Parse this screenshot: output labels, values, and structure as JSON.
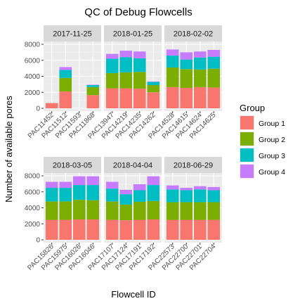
{
  "chart_data": {
    "type": "bar",
    "stacked": true,
    "title": "QC of Debug Flowcells",
    "xlabel": "Flowcell ID",
    "ylabel": "Number of available pores",
    "ylim": [
      0,
      8000
    ],
    "yticks": [
      0,
      2000,
      4000,
      6000,
      8000
    ],
    "grid": true,
    "legend": {
      "title": "Group",
      "placement": "right",
      "entries": [
        {
          "label": "Group 1",
          "color": "#F8766D"
        },
        {
          "label": "Group 2",
          "color": "#7CAE00"
        },
        {
          "label": "Group 3",
          "color": "#00BFC4"
        },
        {
          "label": "Group 4",
          "color": "#C77CFF"
        }
      ]
    },
    "facets": [
      {
        "label": "2017-11-25",
        "categories": [
          "PAC11452",
          "PAC11512",
          "PAC11593",
          "PAC11868"
        ],
        "series": [
          {
            "name": "Group 1",
            "values": [
              650,
              2100,
              0,
              1650
            ]
          },
          {
            "name": "Group 2",
            "values": [
              0,
              1700,
              0,
              1000
            ]
          },
          {
            "name": "Group 3",
            "values": [
              0,
              1000,
              0,
              250
            ]
          },
          {
            "name": "Group 4",
            "values": [
              0,
              350,
              0,
              50
            ]
          }
        ]
      },
      {
        "label": "2018-01-25",
        "categories": [
          "PAC13947",
          "PAC14219",
          "PAC14235",
          "PAC14262"
        ],
        "series": [
          {
            "name": "Group 1",
            "values": [
              2500,
              2500,
              2450,
              2000
            ]
          },
          {
            "name": "Group 2",
            "values": [
              1900,
              2000,
              2100,
              900
            ]
          },
          {
            "name": "Group 3",
            "values": [
              1800,
              1900,
              1700,
              400
            ]
          },
          {
            "name": "Group 4",
            "values": [
              600,
              800,
              850,
              50
            ]
          }
        ]
      },
      {
        "label": "2018-02-02",
        "categories": [
          "PAC14528",
          "PAC14615",
          "PAC14624",
          "PAC14625"
        ],
        "series": [
          {
            "name": "Group 1",
            "values": [
              2650,
              2550,
              2650,
              2600
            ]
          },
          {
            "name": "Group 2",
            "values": [
              2450,
              2350,
              2200,
              2350
            ]
          },
          {
            "name": "Group 3",
            "values": [
              1500,
              1200,
              1500,
              1500
            ]
          },
          {
            "name": "Group 4",
            "values": [
              750,
              900,
              750,
              850
            ]
          }
        ]
      },
      {
        "label": "2018-03-05",
        "categories": [
          "PAC15826",
          "PAC15975",
          "PAC16026",
          "PAC16046"
        ],
        "series": [
          {
            "name": "Group 1",
            "values": [
              2500,
              2500,
              2550,
              2550
            ]
          },
          {
            "name": "Group 2",
            "values": [
              2300,
              2300,
              2450,
              2400
            ]
          },
          {
            "name": "Group 3",
            "values": [
              1700,
              1700,
              1850,
              1900
            ]
          },
          {
            "name": "Group 4",
            "values": [
              750,
              750,
              1100,
              1100
            ]
          }
        ]
      },
      {
        "label": "2018-04-04",
        "categories": [
          "PAC17107",
          "PAC17124",
          "PAC17191",
          "PAC17192"
        ],
        "series": [
          {
            "name": "Group 1",
            "values": [
              2500,
              2450,
              2500,
              2550
            ]
          },
          {
            "name": "Group 2",
            "values": [
              2300,
              1950,
              2250,
              2300
            ]
          },
          {
            "name": "Group 3",
            "values": [
              1600,
              1300,
              1450,
              2000
            ]
          },
          {
            "name": "Group 4",
            "values": [
              850,
              550,
              750,
              1100
            ]
          }
        ]
      },
      {
        "label": "2018-06-29",
        "categories": [
          "PAC22573",
          "PAC22700",
          "PAC22701",
          "PAC22704"
        ],
        "series": [
          {
            "name": "Group 1",
            "values": [
              2500,
              2500,
              2500,
              2500
            ]
          },
          {
            "name": "Group 2",
            "values": [
              2200,
              2200,
              2200,
              2200
            ]
          },
          {
            "name": "Group 3",
            "values": [
              1600,
              1500,
              1600,
              1500
            ]
          },
          {
            "name": "Group 4",
            "values": [
              500,
              300,
              400,
              400
            ]
          }
        ]
      }
    ]
  }
}
